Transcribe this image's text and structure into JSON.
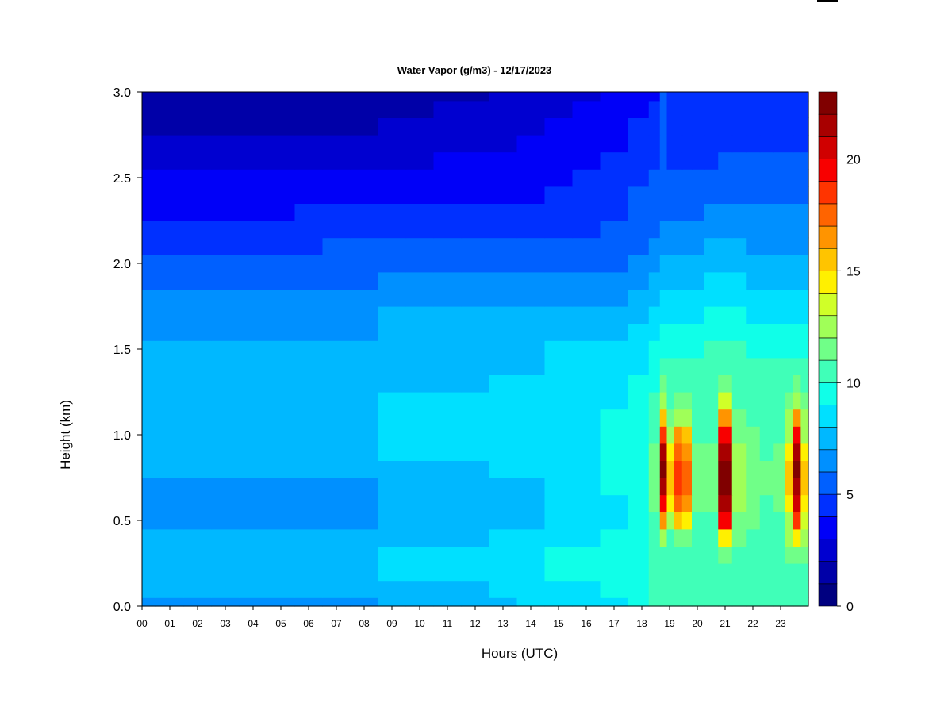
{
  "chart_data": {
    "type": "heatmap",
    "title": "Water Vapor (g/m3) - 12/17/2023",
    "xlabel": "Hours (UTC)",
    "ylabel": "Height (km)",
    "xlim": [
      0,
      24
    ],
    "ylim": [
      0,
      3.0
    ],
    "x_ticks": [
      0,
      1,
      2,
      3,
      4,
      5,
      6,
      7,
      8,
      9,
      10,
      11,
      12,
      13,
      14,
      15,
      16,
      17,
      18,
      19,
      20,
      21,
      22,
      23
    ],
    "x_tick_labels": [
      "00",
      "01",
      "02",
      "03",
      "04",
      "05",
      "06",
      "07",
      "08",
      "09",
      "10",
      "11",
      "12",
      "13",
      "14",
      "15",
      "16",
      "17",
      "18",
      "19",
      "20",
      "21",
      "22",
      "23"
    ],
    "y_ticks": [
      0.0,
      0.5,
      1.0,
      1.5,
      2.0,
      2.5,
      3.0
    ],
    "y_tick_labels": [
      "0.0",
      "0.5",
      "1.0",
      "1.5",
      "2.0",
      "2.5",
      "3.0"
    ],
    "colorbar": {
      "range": [
        0,
        23
      ],
      "ticks": [
        0,
        5,
        10,
        15,
        20
      ],
      "tick_labels": [
        "0",
        "5",
        "10",
        "15",
        "20"
      ],
      "colors": [
        "#000080",
        "#0000A8",
        "#0000D0",
        "#0000F8",
        "#0030FF",
        "#0060FF",
        "#0090FF",
        "#00B8FF",
        "#00E0FF",
        "#10FFE8",
        "#40FFB8",
        "#70FF88",
        "#A0FF58",
        "#D0FF28",
        "#FFF000",
        "#FFC400",
        "#FF9400",
        "#FF6400",
        "#FF3400",
        "#F80000",
        "#D00000",
        "#A80000",
        "#800000"
      ]
    },
    "x_hours": [
      0,
      1,
      2,
      3,
      4,
      5,
      6,
      7,
      8,
      9,
      10,
      11,
      12,
      13,
      14,
      15,
      16,
      17,
      18,
      18.5,
      18.8,
      19.0,
      19.3,
      19.6,
      20,
      20.5,
      21.0,
      21.5,
      22,
      22.5,
      23,
      23.3,
      23.6,
      23.85
    ],
    "heights_km": [
      0.0,
      0.1,
      0.2,
      0.3,
      0.4,
      0.5,
      0.6,
      0.7,
      0.8,
      0.9,
      1.0,
      1.1,
      1.2,
      1.3,
      1.4,
      1.5,
      1.6,
      1.7,
      1.8,
      1.9,
      2.0,
      2.1,
      2.2,
      2.3,
      2.4,
      2.5,
      2.6,
      2.7,
      2.8,
      2.9,
      3.0
    ],
    "values_gm3": [
      [
        6.5,
        6.5,
        6.5,
        6.5,
        6.5,
        6.5,
        6.5,
        6.5,
        6.5,
        7.0,
        7.0,
        7.0,
        7.5,
        7.5,
        8.0,
        8.0,
        8.5,
        8.5,
        9.5,
        10.0,
        10.0,
        10.0,
        10.0,
        10.0,
        10.0,
        10.0,
        10.0,
        10.0,
        10.0,
        10.0,
        10.0,
        10.0,
        10.0,
        10.0
      ],
      [
        7.0,
        7.0,
        7.0,
        7.0,
        7.0,
        7.0,
        7.0,
        7.0,
        7.0,
        7.5,
        7.5,
        7.5,
        7.5,
        8.0,
        8.0,
        8.5,
        8.5,
        9.0,
        9.5,
        10.0,
        10.0,
        10.0,
        10.0,
        10.0,
        10.5,
        10.5,
        10.5,
        10.5,
        10.5,
        10.5,
        10.5,
        10.5,
        10.5,
        10.5
      ],
      [
        7.0,
        7.0,
        7.5,
        7.5,
        7.5,
        7.5,
        7.0,
        7.0,
        7.0,
        8.0,
        8.0,
        8.0,
        8.0,
        8.5,
        8.5,
        9.0,
        9.0,
        9.0,
        9.5,
        10.0,
        10.0,
        10.0,
        10.5,
        10.5,
        10.5,
        10.5,
        10.5,
        10.5,
        10.5,
        10.5,
        10.5,
        10.5,
        10.5,
        10.5
      ],
      [
        7.0,
        7.0,
        7.5,
        7.5,
        7.5,
        7.5,
        7.5,
        7.5,
        7.5,
        8.0,
        8.0,
        8.0,
        8.0,
        8.5,
        8.5,
        9.0,
        9.0,
        9.0,
        9.5,
        10.0,
        10.5,
        10.5,
        10.5,
        10.5,
        10.5,
        10.5,
        11.0,
        10.5,
        10.5,
        10.5,
        10.5,
        11.0,
        11.0,
        11.0
      ],
      [
        7.0,
        7.0,
        7.0,
        7.0,
        7.0,
        7.0,
        7.0,
        7.0,
        7.0,
        7.5,
        7.5,
        7.5,
        7.5,
        8.0,
        8.0,
        8.5,
        8.5,
        9.0,
        9.5,
        10.0,
        12.0,
        10.5,
        11.0,
        11.0,
        10.5,
        10.5,
        14.0,
        11.0,
        10.5,
        10.5,
        10.5,
        13.0,
        14.0,
        12.5
      ],
      [
        6.5,
        6.5,
        6.5,
        6.5,
        6.5,
        6.5,
        6.5,
        6.5,
        6.5,
        7.0,
        7.0,
        7.0,
        7.0,
        7.5,
        7.5,
        8.0,
        8.5,
        8.5,
        9.5,
        10.5,
        16.0,
        12.0,
        15.0,
        14.0,
        10.5,
        10.5,
        19.0,
        11.5,
        11.0,
        10.5,
        10.5,
        13.0,
        18.0,
        13.5
      ],
      [
        6.5,
        6.5,
        6.5,
        6.5,
        6.5,
        6.5,
        6.5,
        6.5,
        6.5,
        7.0,
        7.0,
        7.0,
        7.0,
        7.5,
        7.5,
        8.0,
        8.5,
        8.5,
        9.5,
        11.0,
        19.0,
        14.0,
        17.0,
        16.0,
        11.0,
        11.0,
        21.0,
        12.0,
        11.0,
        10.5,
        11.0,
        14.0,
        20.0,
        14.0
      ],
      [
        6.5,
        6.5,
        6.5,
        6.5,
        6.5,
        6.5,
        6.5,
        6.5,
        6.5,
        7.0,
        7.0,
        7.0,
        7.0,
        7.5,
        7.5,
        8.0,
        8.5,
        9.0,
        9.5,
        11.0,
        21.0,
        15.0,
        18.0,
        17.0,
        11.0,
        11.0,
        22.0,
        12.0,
        11.0,
        11.0,
        11.0,
        15.0,
        21.0,
        15.0
      ],
      [
        7.0,
        7.0,
        7.0,
        7.0,
        7.0,
        7.0,
        7.0,
        7.0,
        7.0,
        7.5,
        7.5,
        7.5,
        7.5,
        8.0,
        8.0,
        8.5,
        8.5,
        9.0,
        9.5,
        11.0,
        22.0,
        15.0,
        18.0,
        17.0,
        11.0,
        11.0,
        22.0,
        12.0,
        11.0,
        11.0,
        11.0,
        15.0,
        22.0,
        15.0
      ],
      [
        7.0,
        7.0,
        7.0,
        7.0,
        7.0,
        7.0,
        7.0,
        7.0,
        7.0,
        8.0,
        8.0,
        8.0,
        8.0,
        8.0,
        8.0,
        8.5,
        8.5,
        9.0,
        9.5,
        11.0,
        21.0,
        14.0,
        17.0,
        16.0,
        11.0,
        11.0,
        21.0,
        12.0,
        11.0,
        10.5,
        11.0,
        14.0,
        21.0,
        14.0
      ],
      [
        7.0,
        7.0,
        7.0,
        7.0,
        7.0,
        7.0,
        7.0,
        7.0,
        7.0,
        8.0,
        8.0,
        8.0,
        8.0,
        8.0,
        8.0,
        8.5,
        8.5,
        9.0,
        9.5,
        10.5,
        18.0,
        13.0,
        16.0,
        15.0,
        10.5,
        10.5,
        19.0,
        11.5,
        11.0,
        10.5,
        10.5,
        13.0,
        19.0,
        13.0
      ],
      [
        7.0,
        7.0,
        7.0,
        7.0,
        7.0,
        7.0,
        7.0,
        7.0,
        7.0,
        8.0,
        8.0,
        8.0,
        8.0,
        8.0,
        8.0,
        8.5,
        8.5,
        9.0,
        9.0,
        10.0,
        15.0,
        11.0,
        13.0,
        12.0,
        10.5,
        10.5,
        16.0,
        11.0,
        10.5,
        10.5,
        10.5,
        12.0,
        16.0,
        12.0
      ],
      [
        7.0,
        7.0,
        7.0,
        7.0,
        7.0,
        7.0,
        7.0,
        7.0,
        7.0,
        8.0,
        8.0,
        8.0,
        8.0,
        8.0,
        8.0,
        8.5,
        8.5,
        8.5,
        9.0,
        10.0,
        12.5,
        10.5,
        11.5,
        11.0,
        10.0,
        10.0,
        13.5,
        10.5,
        10.5,
        10.0,
        10.0,
        11.5,
        13.0,
        11.0
      ],
      [
        7.0,
        7.0,
        7.0,
        7.0,
        7.0,
        7.0,
        7.0,
        7.0,
        7.0,
        7.5,
        7.5,
        7.5,
        7.5,
        8.0,
        8.0,
        8.0,
        8.5,
        8.5,
        9.0,
        9.5,
        11.0,
        10.0,
        10.5,
        10.0,
        10.0,
        10.0,
        11.5,
        10.0,
        10.0,
        10.0,
        10.0,
        10.5,
        11.0,
        10.5
      ],
      [
        7.0,
        7.0,
        7.0,
        7.0,
        7.0,
        7.0,
        7.0,
        7.0,
        7.0,
        7.5,
        7.5,
        7.5,
        7.5,
        7.5,
        7.5,
        8.0,
        8.0,
        8.5,
        8.5,
        9.5,
        10.0,
        10.0,
        10.0,
        10.0,
        10.0,
        10.0,
        10.5,
        10.0,
        10.0,
        10.0,
        10.0,
        10.0,
        10.0,
        10.0
      ],
      [
        7.0,
        7.0,
        7.0,
        7.0,
        7.0,
        7.0,
        7.0,
        7.0,
        7.0,
        7.5,
        7.5,
        7.5,
        7.5,
        7.5,
        7.5,
        8.0,
        8.0,
        8.0,
        8.5,
        9.0,
        9.5,
        9.5,
        9.5,
        9.5,
        9.5,
        10.0,
        10.0,
        10.0,
        9.5,
        9.5,
        9.5,
        9.5,
        9.5,
        9.5
      ],
      [
        6.5,
        6.5,
        6.5,
        6.5,
        6.5,
        6.5,
        6.5,
        6.5,
        6.5,
        7.0,
        7.0,
        7.0,
        7.0,
        7.0,
        7.0,
        7.5,
        7.5,
        7.5,
        8.0,
        8.5,
        9.0,
        9.0,
        9.0,
        9.0,
        9.0,
        9.5,
        9.5,
        9.5,
        9.0,
        9.0,
        9.0,
        9.0,
        9.0,
        9.0
      ],
      [
        6.5,
        6.5,
        6.5,
        6.5,
        6.5,
        6.5,
        6.5,
        6.5,
        6.5,
        7.0,
        7.0,
        7.0,
        7.0,
        7.0,
        7.0,
        7.0,
        7.0,
        7.0,
        7.5,
        8.0,
        8.5,
        8.5,
        8.5,
        8.5,
        8.5,
        9.0,
        9.0,
        9.0,
        8.5,
        8.5,
        8.5,
        8.5,
        8.5,
        8.5
      ],
      [
        6.0,
        6.0,
        6.0,
        6.0,
        6.0,
        6.0,
        6.0,
        6.0,
        6.0,
        6.5,
        6.5,
        6.5,
        6.5,
        6.5,
        6.5,
        6.5,
        6.5,
        6.5,
        7.0,
        7.5,
        8.0,
        8.0,
        8.0,
        8.0,
        8.0,
        8.5,
        8.5,
        8.5,
        8.0,
        8.0,
        8.0,
        8.0,
        8.0,
        8.0
      ],
      [
        5.5,
        5.5,
        5.5,
        5.5,
        5.5,
        5.5,
        5.5,
        5.5,
        5.5,
        6.0,
        6.0,
        6.0,
        6.0,
        6.0,
        6.0,
        6.0,
        6.0,
        6.0,
        6.5,
        7.0,
        7.5,
        7.5,
        7.5,
        7.5,
        7.5,
        8.0,
        8.0,
        8.0,
        7.5,
        7.5,
        7.5,
        7.5,
        7.5,
        7.5
      ],
      [
        5.0,
        5.0,
        5.0,
        5.0,
        5.0,
        5.0,
        5.0,
        5.0,
        5.0,
        5.5,
        5.5,
        5.5,
        5.5,
        5.5,
        5.5,
        5.5,
        5.5,
        5.5,
        6.0,
        6.5,
        7.0,
        7.0,
        7.0,
        7.0,
        7.0,
        7.5,
        7.5,
        7.5,
        7.0,
        7.0,
        7.0,
        7.0,
        7.0,
        7.0
      ],
      [
        4.5,
        4.5,
        4.5,
        4.5,
        4.5,
        4.5,
        4.5,
        5.0,
        5.0,
        5.0,
        5.0,
        5.0,
        5.0,
        5.0,
        5.0,
        5.0,
        5.0,
        5.0,
        5.5,
        6.0,
        6.5,
        6.5,
        6.5,
        6.5,
        6.5,
        7.0,
        7.0,
        7.0,
        6.5,
        6.5,
        6.5,
        6.5,
        6.5,
        6.5
      ],
      [
        4.0,
        4.0,
        4.0,
        4.0,
        4.0,
        4.0,
        4.5,
        4.5,
        4.5,
        4.5,
        4.5,
        4.5,
        4.5,
        4.5,
        4.5,
        4.5,
        4.5,
        5.0,
        5.0,
        5.5,
        6.0,
        6.0,
        6.0,
        6.0,
        6.0,
        6.5,
        6.5,
        6.5,
        6.5,
        6.5,
        6.0,
        6.0,
        6.0,
        6.0
      ],
      [
        3.5,
        3.5,
        3.5,
        3.5,
        3.5,
        3.5,
        4.0,
        4.0,
        4.0,
        4.0,
        4.0,
        4.0,
        4.0,
        4.0,
        4.0,
        4.0,
        4.5,
        4.5,
        5.0,
        5.5,
        5.5,
        5.5,
        5.5,
        5.5,
        5.5,
        6.0,
        6.0,
        6.0,
        6.0,
        6.0,
        6.0,
        6.0,
        6.0,
        6.0
      ],
      [
        3.5,
        3.5,
        3.5,
        3.5,
        3.5,
        3.5,
        3.5,
        3.5,
        3.5,
        3.5,
        3.5,
        3.5,
        3.5,
        3.5,
        3.5,
        4.0,
        4.0,
        4.5,
        5.0,
        5.0,
        5.5,
        5.5,
        5.0,
        5.0,
        5.0,
        5.5,
        5.5,
        5.5,
        5.5,
        5.5,
        5.5,
        5.5,
        5.5,
        5.5
      ],
      [
        3.0,
        3.0,
        3.0,
        3.0,
        3.0,
        3.0,
        3.0,
        3.0,
        3.0,
        3.0,
        3.0,
        3.0,
        3.0,
        3.5,
        3.5,
        3.5,
        4.0,
        4.5,
        4.5,
        5.0,
        5.5,
        5.0,
        5.0,
        5.0,
        5.0,
        5.0,
        5.0,
        5.5,
        5.5,
        5.5,
        5.5,
        5.5,
        5.5,
        5.5
      ],
      [
        2.5,
        2.5,
        2.5,
        2.5,
        2.5,
        2.5,
        2.5,
        2.5,
        2.5,
        2.5,
        2.5,
        3.0,
        3.0,
        3.0,
        3.0,
        3.5,
        3.5,
        4.0,
        4.5,
        4.5,
        5.5,
        4.5,
        4.5,
        4.5,
        4.5,
        4.5,
        5.0,
        5.0,
        5.0,
        5.0,
        5.0,
        5.0,
        5.0,
        5.0
      ],
      [
        2.0,
        2.0,
        2.0,
        2.0,
        2.0,
        2.0,
        2.0,
        2.0,
        2.0,
        2.5,
        2.5,
        2.5,
        2.5,
        2.5,
        3.0,
        3.0,
        3.5,
        3.5,
        4.0,
        4.5,
        5.5,
        4.5,
        4.5,
        4.5,
        4.5,
        4.5,
        4.5,
        4.5,
        4.5,
        4.5,
        4.5,
        4.5,
        4.5,
        4.5
      ],
      [
        1.5,
        1.5,
        1.5,
        1.5,
        1.5,
        1.5,
        1.5,
        1.5,
        1.5,
        2.0,
        2.0,
        2.0,
        2.0,
        2.5,
        2.5,
        3.0,
        3.0,
        3.5,
        4.0,
        4.0,
        5.5,
        4.0,
        4.0,
        4.0,
        4.0,
        4.0,
        4.5,
        4.5,
        4.5,
        4.5,
        4.5,
        4.5,
        4.5,
        4.5
      ],
      [
        1.5,
        1.5,
        1.5,
        1.5,
        1.5,
        1.5,
        1.5,
        1.5,
        1.5,
        1.5,
        1.5,
        2.0,
        2.0,
        2.0,
        2.5,
        2.5,
        3.0,
        3.0,
        3.5,
        4.0,
        5.0,
        4.0,
        4.0,
        4.0,
        4.0,
        4.0,
        4.0,
        4.0,
        4.0,
        4.0,
        4.0,
        4.0,
        4.0,
        4.0
      ],
      [
        1.0,
        1.0,
        1.0,
        1.0,
        1.0,
        1.0,
        1.0,
        1.0,
        1.0,
        1.5,
        1.5,
        1.5,
        1.5,
        2.0,
        2.0,
        2.5,
        2.5,
        3.0,
        3.5,
        3.5,
        5.0,
        4.0,
        4.0,
        4.0,
        4.0,
        4.0,
        4.0,
        4.0,
        4.0,
        4.0,
        4.0,
        4.0,
        4.0,
        4.0
      ]
    ]
  }
}
